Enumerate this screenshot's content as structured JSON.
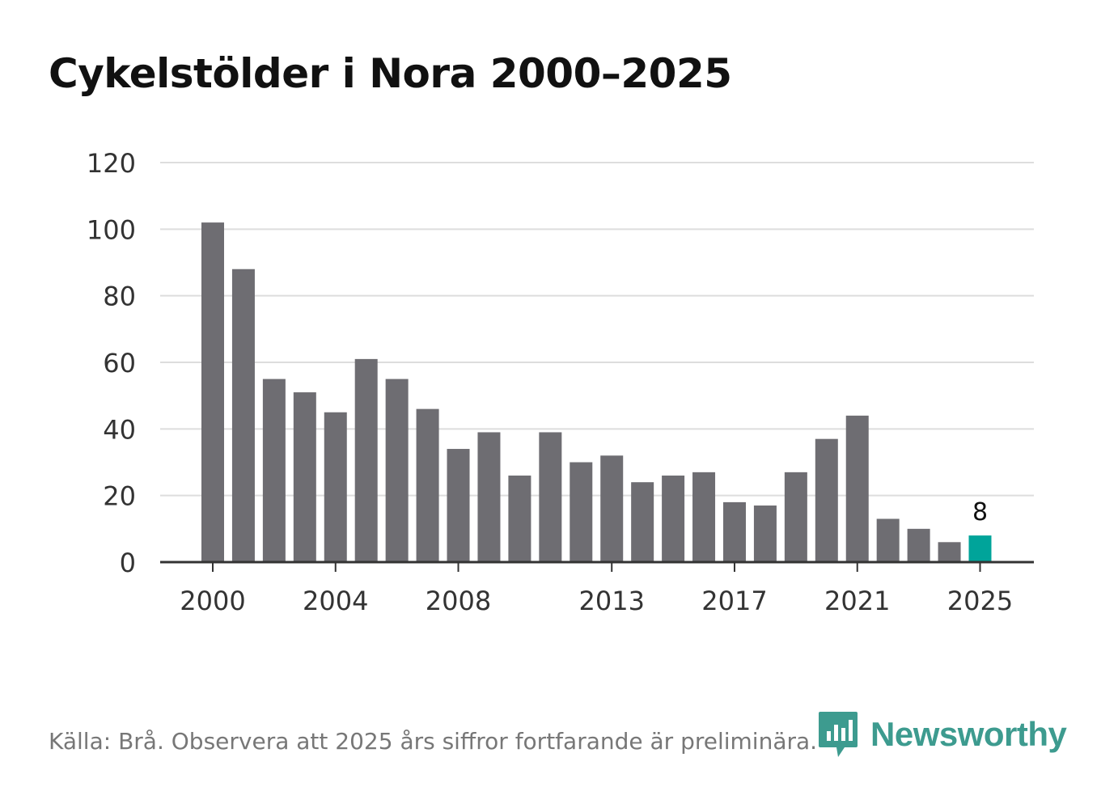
{
  "title": "Cykelstölder i Nora 2000–2025",
  "footer": "Källa: Brå. Observera att 2025 års siffror fortfarande är preliminära.",
  "brand": "Newsworthy",
  "colors": {
    "bar": "#6e6d72",
    "highlight": "#00a49a",
    "grid": "#dddddd",
    "axis": "#333333",
    "brand": "#3d9b8f"
  },
  "chart_data": {
    "type": "bar",
    "title": "Cykelstölder i Nora 2000–2025",
    "xlabel": "",
    "ylabel": "",
    "ylim": [
      0,
      120
    ],
    "yticks": [
      0,
      20,
      40,
      60,
      80,
      100,
      120
    ],
    "categories": [
      2000,
      2001,
      2002,
      2003,
      2004,
      2005,
      2006,
      2007,
      2008,
      2009,
      2010,
      2011,
      2012,
      2013,
      2014,
      2015,
      2016,
      2017,
      2018,
      2019,
      2020,
      2021,
      2022,
      2023,
      2024,
      2025
    ],
    "values": [
      102,
      88,
      55,
      51,
      45,
      61,
      55,
      46,
      34,
      39,
      26,
      39,
      30,
      32,
      24,
      26,
      27,
      18,
      17,
      27,
      37,
      44,
      13,
      10,
      6,
      8
    ],
    "xtick_labels": [
      2000,
      2004,
      2008,
      2013,
      2017,
      2021,
      2025
    ],
    "highlight": {
      "category": 2025,
      "label": "8"
    }
  }
}
